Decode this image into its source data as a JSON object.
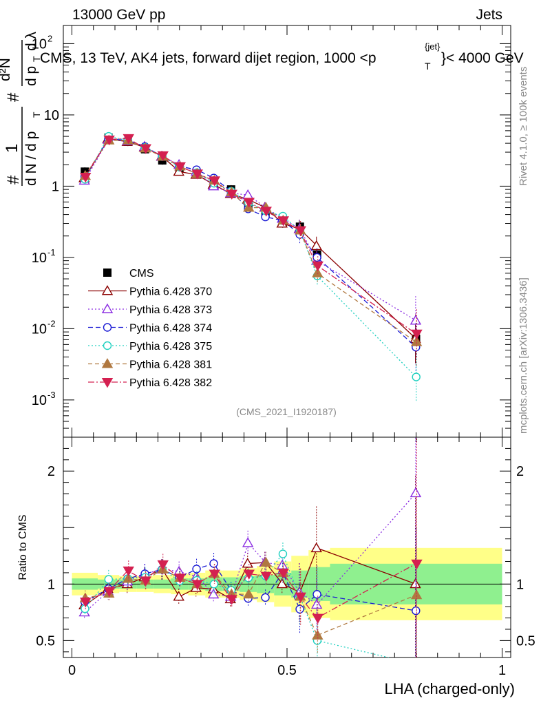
{
  "header": {
    "left": "13000 GeV pp",
    "right": "Jets",
    "rivet": "Rivet 4.1.0, ≥ 100k events",
    "mcplots": "mcplots.cern.ch [arXiv:1306.3436]",
    "analysis_tag": "(CMS_2021_I1920187)"
  },
  "chart_data": {
    "type": "line",
    "title": "CMS, 13 TeV, AK4 jets, forward dijet region, 1000 <p",
    "title_sub": "T",
    "title_sup": "{jet}",
    "title_end": "}< 4000 GeV",
    "xlabel": "LHA (charged-only)",
    "ylabel_top": {
      "prefix": "#",
      "frac_num": "1",
      "frac_den": "d N / d p",
      "frac_den_sub": "T",
      "mid": "#",
      "d2n_num": "d²N",
      "d2n_den": "d p",
      "d2n_den_sub": "T",
      "dlambda": "d λ"
    },
    "ylabel_ratio": "Ratio to CMS",
    "x_ticks": [
      "0",
      "0.5",
      "1"
    ],
    "x_tick_values": [
      0,
      0.5,
      1
    ],
    "xlim": [
      -0.02,
      1.02
    ],
    "ylim_top": [
      0.0003,
      180
    ],
    "ylim_ratio": [
      0.35,
      2.3
    ],
    "ratio_ticks": [
      "0.5",
      "1",
      "2"
    ],
    "ratio_tick_values": [
      0.5,
      1,
      2
    ],
    "top_tick_labels": [
      {
        "mant": "10",
        "exp": "-3",
        "v": 0.001
      },
      {
        "mant": "10",
        "exp": "-2",
        "v": 0.01
      },
      {
        "mant": "10",
        "exp": "-1",
        "v": 0.1
      },
      {
        "mant": "1",
        "exp": "",
        "v": 1
      },
      {
        "mant": "10",
        "exp": "",
        "v": 10
      },
      {
        "mant": "10",
        "exp": "2",
        "v": 100
      }
    ],
    "x": [
      0.03,
      0.085,
      0.13,
      0.17,
      0.21,
      0.25,
      0.29,
      0.33,
      0.37,
      0.41,
      0.45,
      0.49,
      0.53,
      0.57,
      0.8
    ],
    "bin_edges": [
      0.0,
      0.06,
      0.11,
      0.15,
      0.19,
      0.23,
      0.27,
      0.31,
      0.35,
      0.39,
      0.43,
      0.47,
      0.51,
      0.55,
      0.6,
      1.0
    ],
    "data": {
      "name": "CMS",
      "values": [
        1.6,
        4.8,
        4.2,
        3.3,
        2.3,
        1.8,
        1.5,
        1.1,
        0.9,
        0.55,
        0.42,
        0.3,
        0.27,
        0.11,
        0.0072
      ],
      "band_inner": [
        0.05,
        0.04,
        0.04,
        0.04,
        0.04,
        0.05,
        0.05,
        0.06,
        0.06,
        0.07,
        0.08,
        0.1,
        0.12,
        0.15,
        0.18
      ],
      "band_outer": [
        0.1,
        0.08,
        0.07,
        0.07,
        0.08,
        0.09,
        0.1,
        0.12,
        0.12,
        0.14,
        0.16,
        0.2,
        0.25,
        0.3,
        0.32
      ]
    },
    "series": [
      {
        "name": "Pythia 6.428 370",
        "color": "#8b0000",
        "dash": "",
        "marker": "tri-open",
        "values": [
          1.3,
          4.6,
          4.2,
          3.5,
          2.6,
          1.6,
          1.45,
          1.05,
          0.78,
          0.65,
          0.5,
          0.3,
          0.25,
          0.145,
          0.0072
        ]
      },
      {
        "name": "Pythia 6.428 373",
        "color": "#8a2be2",
        "dash": "2,3",
        "marker": "tri-open",
        "values": [
          1.2,
          4.5,
          4.3,
          3.6,
          2.6,
          2.0,
          1.6,
          1.0,
          0.8,
          0.75,
          0.5,
          0.35,
          0.25,
          0.09,
          0.013
        ]
      },
      {
        "name": "Pythia 6.428 374",
        "color": "#1a1ad4",
        "dash": "7,4",
        "marker": "circ-open",
        "values": [
          1.35,
          4.6,
          4.4,
          3.6,
          2.6,
          1.9,
          1.7,
          1.3,
          0.85,
          0.48,
          0.37,
          0.33,
          0.21,
          0.1,
          0.0055
        ]
      },
      {
        "name": "Pythia 6.428 375",
        "color": "#20d0c0",
        "dash": "2,3",
        "marker": "circ-open",
        "values": [
          1.25,
          5.0,
          4.4,
          3.5,
          2.6,
          1.85,
          1.55,
          1.1,
          0.85,
          0.58,
          0.45,
          0.38,
          0.24,
          0.055,
          0.0021
        ]
      },
      {
        "name": "Pythia 6.428 381",
        "color": "#b07840",
        "dash": "6,4",
        "marker": "tri-filled",
        "values": [
          1.4,
          4.4,
          4.4,
          3.4,
          2.6,
          1.9,
          1.5,
          1.2,
          0.82,
          0.5,
          0.5,
          0.33,
          0.24,
          0.06,
          0.0065
        ]
      },
      {
        "name": "Pythia 6.428 382",
        "color": "#d42050",
        "dash": "9,3,2,3",
        "marker": "tri-down-filled",
        "values": [
          1.35,
          4.5,
          4.7,
          3.4,
          2.7,
          1.9,
          1.5,
          1.2,
          0.78,
          0.6,
          0.45,
          0.33,
          0.24,
          0.077,
          0.0085
        ]
      }
    ]
  }
}
